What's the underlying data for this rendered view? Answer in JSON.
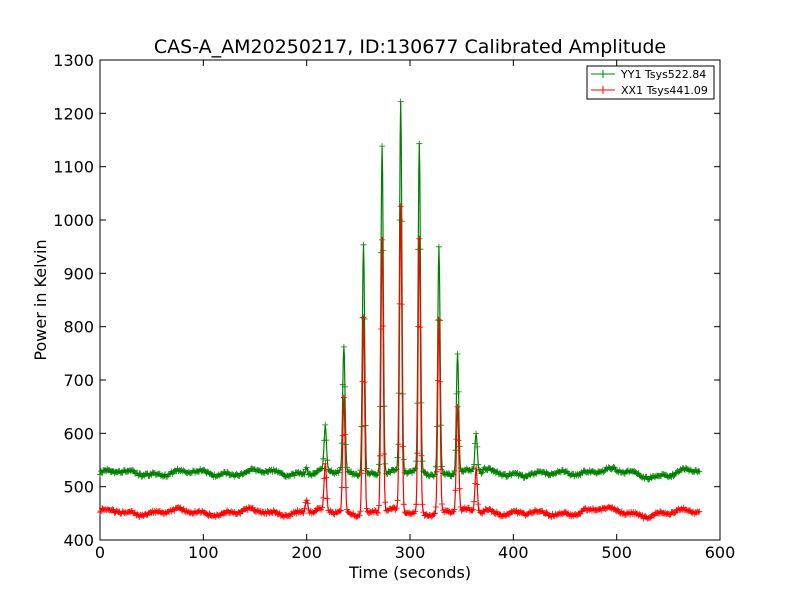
{
  "chart_data": {
    "type": "line",
    "title": "CAS-A_AM20250217, ID:130677 Calibrated Amplitude",
    "xlabel": "Time (seconds)",
    "ylabel": "Power in Kelvin",
    "xlim": [
      0,
      600
    ],
    "ylim": [
      400,
      1300
    ],
    "xticks": [
      "0",
      "100",
      "200",
      "300",
      "400",
      "500",
      "600"
    ],
    "yticks": [
      "400",
      "500",
      "600",
      "700",
      "800",
      "900",
      "1000",
      "1100",
      "1200",
      "1300"
    ],
    "grid": false,
    "legend_position": "top-right",
    "series": [
      {
        "name": "YY1 Tsys522.84",
        "color": "#008000",
        "baseline": 526,
        "x_start": 0,
        "x_end": 580,
        "peaks": [
          {
            "x": 200,
            "y": 540
          },
          {
            "x": 218,
            "y": 610
          },
          {
            "x": 236,
            "y": 760
          },
          {
            "x": 255,
            "y": 960
          },
          {
            "x": 273,
            "y": 1145
          },
          {
            "x": 291,
            "y": 1220
          },
          {
            "x": 309,
            "y": 1140
          },
          {
            "x": 328,
            "y": 950
          },
          {
            "x": 346,
            "y": 750
          },
          {
            "x": 364,
            "y": 600
          }
        ]
      },
      {
        "name": "XX1 Tsys441.09",
        "color": "#ff0000",
        "baseline": 452,
        "x_start": 0,
        "x_end": 580,
        "peaks": [
          {
            "x": 200,
            "y": 475
          },
          {
            "x": 218,
            "y": 540
          },
          {
            "x": 236,
            "y": 665
          },
          {
            "x": 255,
            "y": 820
          },
          {
            "x": 273,
            "y": 965
          },
          {
            "x": 291,
            "y": 1025
          },
          {
            "x": 309,
            "y": 965
          },
          {
            "x": 328,
            "y": 815
          },
          {
            "x": 346,
            "y": 650
          },
          {
            "x": 364,
            "y": 535
          }
        ]
      }
    ]
  }
}
